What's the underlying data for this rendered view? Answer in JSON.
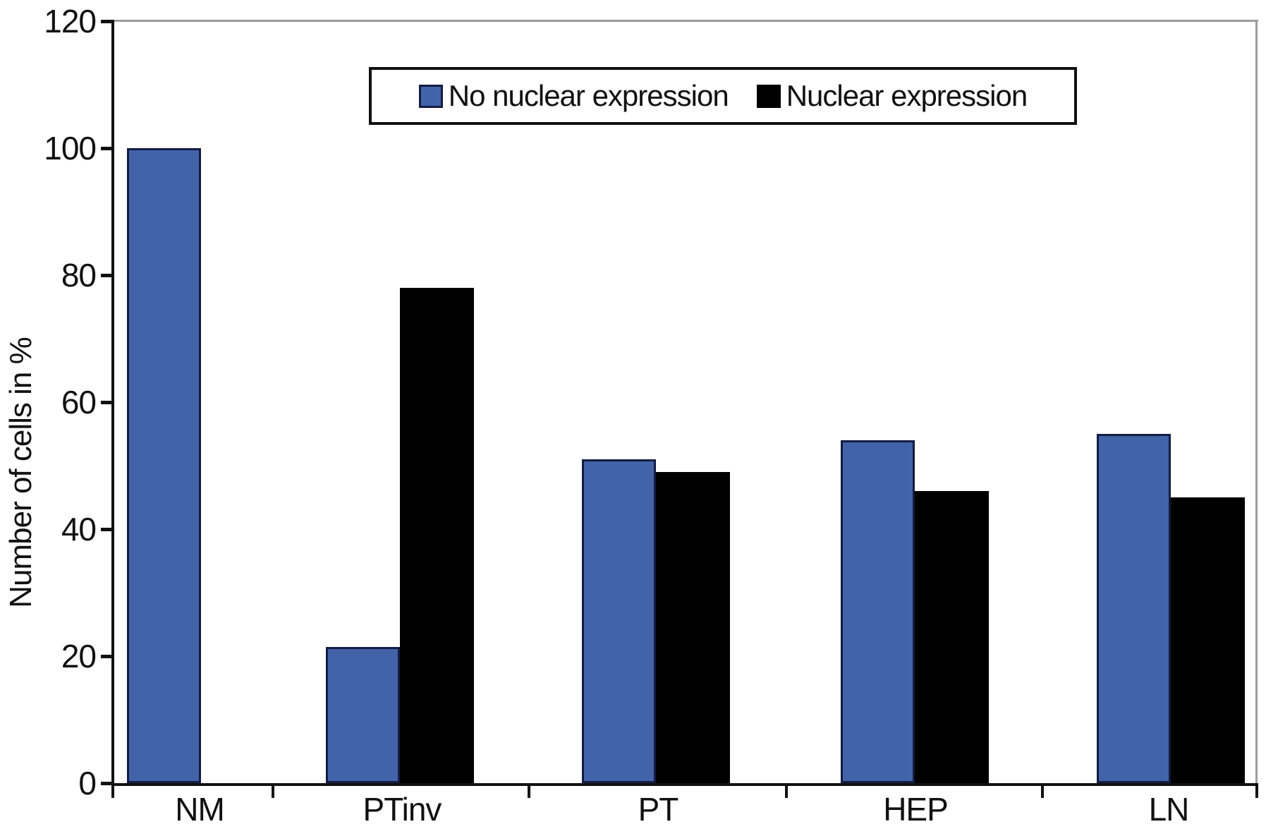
{
  "chart_data": {
    "type": "bar",
    "title": "",
    "xlabel": "",
    "ylabel": "Number of cells in %",
    "categories": [
      "NM",
      "PTinv",
      "PT",
      "HEP",
      "LN"
    ],
    "series": [
      {
        "name": "No nuclear expression",
        "color": "#4263a8",
        "border_color": "#141c42",
        "values": [
          100,
          21.5,
          51,
          54,
          55
        ]
      },
      {
        "name": "Nuclear expression",
        "color": "#000000",
        "border_color": "#000000",
        "values": [
          0,
          78,
          49,
          46,
          45
        ]
      }
    ],
    "ylim": [
      0,
      120
    ],
    "yticks": [
      0,
      20,
      40,
      60,
      80,
      100,
      120
    ],
    "grid": false,
    "legend_position": "top-center",
    "axis_color": "#111111",
    "frame_color": "#9c9c9c",
    "background": "#ffffff"
  }
}
